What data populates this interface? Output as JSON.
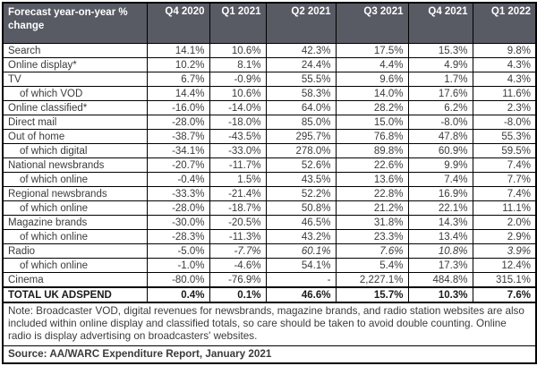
{
  "chart_data": {
    "type": "table",
    "title": "Forecast year-on-year % change",
    "columns": [
      "Q4 2020",
      "Q1 2021",
      "Q2 2021",
      "Q3 2021",
      "Q4 2021",
      "Q1 2022"
    ],
    "rows": [
      {
        "label": "Search",
        "indent": false,
        "values": [
          "14.1%",
          "10.6%",
          "42.3%",
          "17.5%",
          "15.3%",
          "9.8%"
        ]
      },
      {
        "label": "Online display*",
        "indent": false,
        "values": [
          "10.2%",
          "8.1%",
          "24.4%",
          "4.4%",
          "4.9%",
          "4.3%"
        ]
      },
      {
        "label": "TV",
        "indent": false,
        "values": [
          "6.7%",
          "-0.9%",
          "55.5%",
          "9.6%",
          "1.7%",
          "4.3%"
        ]
      },
      {
        "label": "of which VOD",
        "indent": true,
        "values": [
          "14.4%",
          "10.6%",
          "58.3%",
          "14.0%",
          "17.6%",
          "11.6%"
        ]
      },
      {
        "label": "Online classified*",
        "indent": false,
        "values": [
          "-16.0%",
          "-14.0%",
          "64.0%",
          "28.2%",
          "6.2%",
          "2.3%"
        ]
      },
      {
        "label": "Direct mail",
        "indent": false,
        "values": [
          "-28.0%",
          "-18.0%",
          "85.0%",
          "15.0%",
          "-8.0%",
          "-8.0%"
        ]
      },
      {
        "label": "Out of home",
        "indent": false,
        "values": [
          "-38.7%",
          "-43.5%",
          "295.7%",
          "76.8%",
          "47.8%",
          "55.3%"
        ]
      },
      {
        "label": "of which digital",
        "indent": true,
        "values": [
          "-34.1%",
          "-33.0%",
          "278.0%",
          "89.8%",
          "60.9%",
          "59.5%"
        ]
      },
      {
        "label": "National newsbrands",
        "indent": false,
        "values": [
          "-20.7%",
          "-11.7%",
          "52.6%",
          "22.6%",
          "9.9%",
          "7.4%"
        ]
      },
      {
        "label": "of which online",
        "indent": true,
        "values": [
          "-0.4%",
          "1.5%",
          "43.5%",
          "13.6%",
          "7.4%",
          "7.7%"
        ]
      },
      {
        "label": "Regional newsbrands",
        "indent": false,
        "values": [
          "-33.3%",
          "-21.4%",
          "52.2%",
          "22.8%",
          "16.9%",
          "7.4%"
        ]
      },
      {
        "label": "of which online",
        "indent": true,
        "values": [
          "-28.0%",
          "-18.7%",
          "50.8%",
          "21.2%",
          "22.1%",
          "11.1%"
        ]
      },
      {
        "label": "Magazine brands",
        "indent": false,
        "values": [
          "-30.0%",
          "-20.5%",
          "46.5%",
          "31.8%",
          "14.3%",
          "2.0%"
        ]
      },
      {
        "label": "of which online",
        "indent": true,
        "values": [
          "-28.3%",
          "-11.3%",
          "43.2%",
          "23.3%",
          "13.4%",
          "2.9%"
        ]
      },
      {
        "label": "Radio",
        "indent": false,
        "values": [
          "-5.0%",
          "-7.7%",
          "60.1%",
          "7.6%",
          "10.8%",
          "3.9%"
        ],
        "italic": [
          false,
          true,
          true,
          true,
          true,
          true
        ]
      },
      {
        "label": "of which online",
        "indent": true,
        "values": [
          "-1.0%",
          "-4.6%",
          "54.1%",
          "5.4%",
          "17.3%",
          "12.4%"
        ]
      },
      {
        "label": "Cinema",
        "indent": false,
        "values": [
          "-80.0%",
          "-76.9%",
          "-",
          "2,227.1%",
          "484.8%",
          "315.1%"
        ]
      },
      {
        "label": "TOTAL UK ADSPEND",
        "indent": false,
        "bold": true,
        "values": [
          "0.4%",
          "0.1%",
          "46.6%",
          "15.7%",
          "10.3%",
          "7.6%"
        ]
      }
    ],
    "note": "Note: Broadcaster VOD, digital revenues for newsbrands, magazine brands, and radio station websites are also included within online display and classified totals, so care should be taken to avoid double counting. Online radio is display advertising on broadcasters' websites.",
    "source": "Source: AA/WARC Expenditure Report, January 2021",
    "layout": {
      "header_bg": "#585a64",
      "header_text": "#ffffff",
      "border": "#000000"
    }
  }
}
